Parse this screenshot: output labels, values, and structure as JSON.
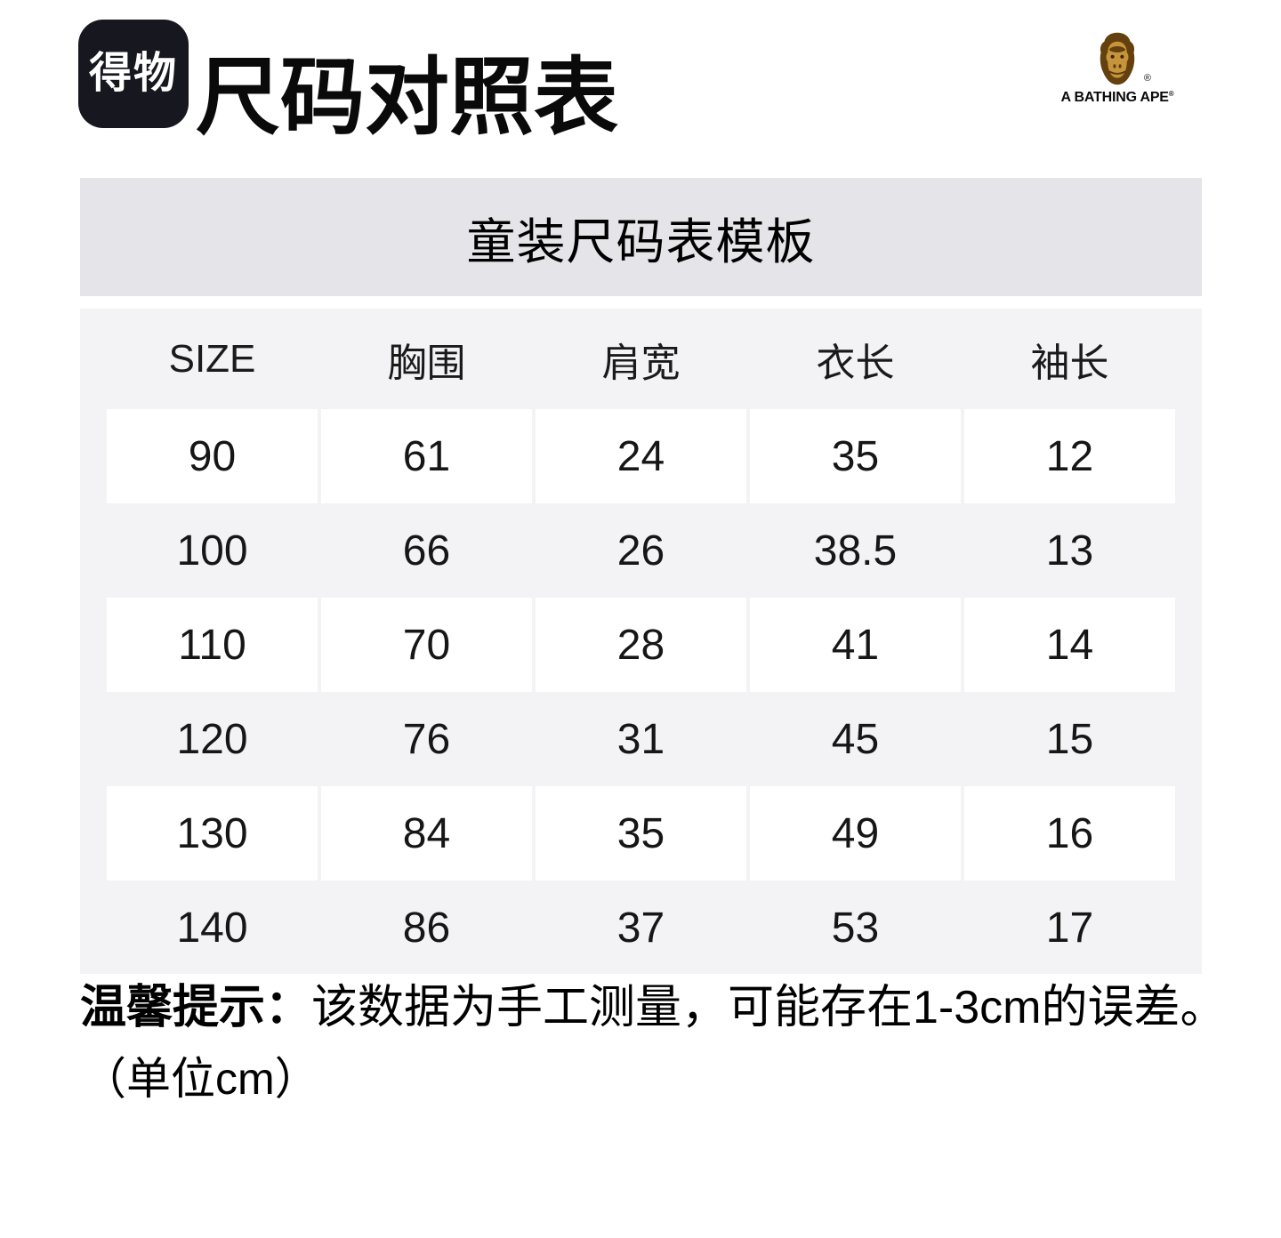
{
  "header": {
    "logo_text": "得物",
    "title": "尺码对照表",
    "brand": {
      "name": "A BATHING APE",
      "registered_mark": "®"
    }
  },
  "banner": {
    "title": "童装尺码表模板"
  },
  "size_table": {
    "columns": [
      "SIZE",
      "胸围",
      "肩宽",
      "衣长",
      "袖长"
    ],
    "rows": [
      [
        "90",
        "61",
        "24",
        "35",
        "12"
      ],
      [
        "100",
        "66",
        "26",
        "38.5",
        "13"
      ],
      [
        "110",
        "70",
        "28",
        "41",
        "14"
      ],
      [
        "120",
        "76",
        "31",
        "45",
        "15"
      ],
      [
        "130",
        "84",
        "35",
        "49",
        "16"
      ],
      [
        "140",
        "86",
        "37",
        "53",
        "17"
      ]
    ]
  },
  "footnote": {
    "label": "温馨提示：",
    "text": "该数据为手工测量，可能存在1-3cm的误差。",
    "unit": "（单位cm）"
  },
  "colors": {
    "logo_bg": "#17171f",
    "banner_bg": "#e5e4e9",
    "panel_bg": "#f3f3f6",
    "row_cell_bg": "#ffffff",
    "ape_head_brown": "#63400e",
    "ape_face_tan": "#c6943a",
    "text": "#111111"
  }
}
